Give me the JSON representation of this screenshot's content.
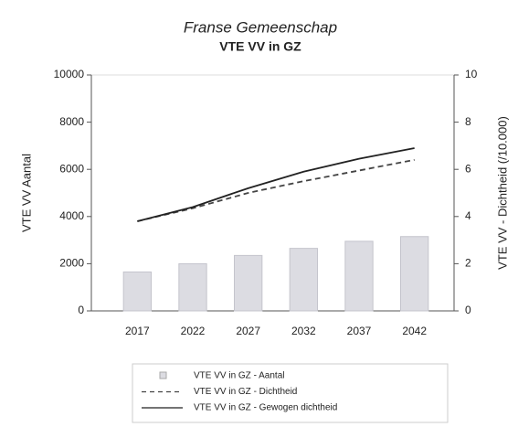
{
  "chart_data": {
    "type": "bar",
    "title": "Franse Gemeenschap",
    "subtitle": "VTE VV in GZ",
    "y_label": "VTE VV Aantal",
    "y2_label": "VTE VV - Dichtheid (/10.000)",
    "categories": [
      "2017",
      "2022",
      "2027",
      "2032",
      "2037",
      "2042"
    ],
    "series": [
      {
        "name": "VTE VV in GZ - Aantal",
        "kind": "bar",
        "color": "#dcdce2",
        "values": [
          1650,
          2000,
          2350,
          2650,
          2950,
          3150
        ]
      },
      {
        "name": "VTE VV in GZ - Dichtheid",
        "kind": "line",
        "dashed": true,
        "axis": "y2",
        "color": "#444444",
        "values": [
          3.8,
          4.35,
          5.0,
          5.5,
          5.95,
          6.4
        ]
      },
      {
        "name": "VTE VV in GZ - Gewogen dichtheid",
        "kind": "line",
        "dashed": false,
        "axis": "y2",
        "color": "#222222",
        "values": [
          3.8,
          4.4,
          5.2,
          5.9,
          6.45,
          6.9
        ]
      }
    ],
    "ylim": [
      0,
      10000
    ],
    "yticks": [
      0,
      2000,
      4000,
      6000,
      8000,
      10000
    ],
    "y2lim": [
      0,
      10
    ],
    "y2ticks": [
      0,
      2,
      4,
      6,
      8,
      10
    ]
  }
}
